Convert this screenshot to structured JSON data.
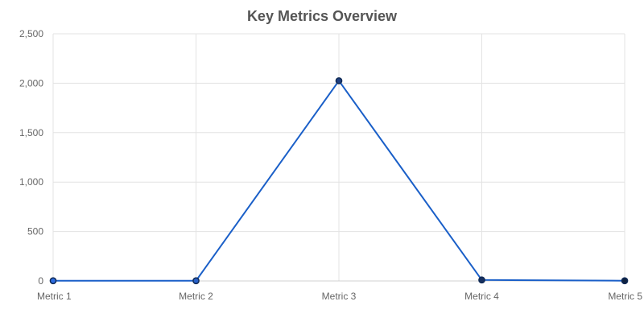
{
  "chart_data": {
    "type": "line",
    "title": "Key Metrics Overview",
    "xlabel": "",
    "ylabel": "",
    "categories": [
      "Metric 1",
      "Metric 2",
      "Metric 3",
      "Metric 4",
      "Metric 5"
    ],
    "series": [
      {
        "values": [
          2,
          2,
          2025,
          10,
          2
        ],
        "color": "#1a5fc8",
        "point_fill": [
          "#2c6be0",
          "#2860c8",
          "#1f3f80",
          "#17305f",
          "#0f2240"
        ],
        "point_stroke": "#102a55"
      }
    ],
    "ylim": [
      0,
      2500
    ],
    "y_ticks": [
      0,
      500,
      1000,
      1500,
      2000,
      2500
    ],
    "y_tick_labels": [
      "0",
      "500",
      "1,000",
      "1,500",
      "2,000",
      "2,500"
    ],
    "grid": true,
    "legend": "none"
  }
}
